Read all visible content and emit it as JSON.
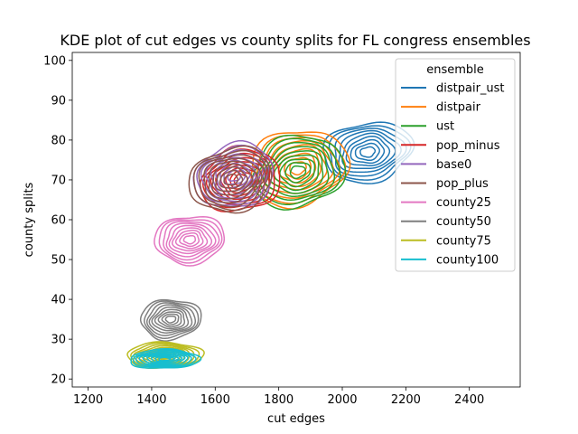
{
  "chart_data": {
    "type": "kde_contour",
    "title": "KDE plot of cut edges vs county splits for FL congress ensembles",
    "xlabel": "cut edges",
    "ylabel": "county splits",
    "xlim": [
      1150,
      2560
    ],
    "ylim": [
      18,
      102
    ],
    "xticks": [
      1200,
      1400,
      1600,
      1800,
      2000,
      2200,
      2400
    ],
    "yticks": [
      20,
      30,
      40,
      50,
      60,
      70,
      80,
      90,
      100
    ],
    "legend": {
      "title": "ensemble",
      "placement": "top-right"
    },
    "series": [
      {
        "name": "distpair_ust",
        "color": "#1f77b4",
        "center": [
          2080,
          77
        ],
        "spread": [
          140,
          7.5
        ],
        "levels": 9
      },
      {
        "name": "distpair",
        "color": "#ff7f0e",
        "center": [
          1860,
          73
        ],
        "spread": [
          155,
          9.5
        ],
        "levels": 9
      },
      {
        "name": "ust",
        "color": "#2ca02c",
        "center": [
          1860,
          72
        ],
        "spread": [
          145,
          9
        ],
        "levels": 9
      },
      {
        "name": "pop_minus",
        "color": "#d62728",
        "center": [
          1680,
          70
        ],
        "spread": [
          125,
          8
        ],
        "levels": 9
      },
      {
        "name": "base0",
        "color": "#9467bd",
        "center": [
          1660,
          71
        ],
        "spread": [
          125,
          8
        ],
        "levels": 9
      },
      {
        "name": "pop_plus",
        "color": "#8c564b",
        "center": [
          1650,
          70
        ],
        "spread": [
          130,
          8
        ],
        "levels": 9
      },
      {
        "name": "county25",
        "color": "#e377c2",
        "center": [
          1520,
          55
        ],
        "spread": [
          110,
          6
        ],
        "levels": 9
      },
      {
        "name": "county50",
        "color": "#7f7f7f",
        "center": [
          1460,
          35
        ],
        "spread": [
          95,
          5
        ],
        "levels": 9
      },
      {
        "name": "county75",
        "color": "#bcbd22",
        "center": [
          1440,
          26
        ],
        "spread": [
          120,
          3.2
        ],
        "levels": 9
      },
      {
        "name": "county100",
        "color": "#17becf",
        "center": [
          1440,
          25
        ],
        "spread": [
          110,
          2.4
        ],
        "levels": 9
      }
    ]
  }
}
